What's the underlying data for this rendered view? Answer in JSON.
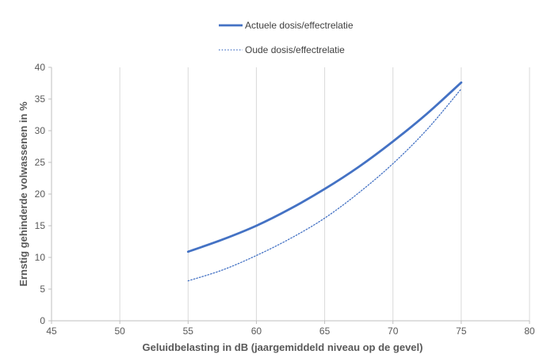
{
  "chart_data": {
    "type": "line",
    "xlabel": "Geluidbelasting in dB (jaargemiddeld niveau op de gevel)",
    "ylabel": "Ernstig gehinderde volwassenen in %",
    "xlim": [
      45,
      80
    ],
    "ylim": [
      0,
      40
    ],
    "xticks": [
      45,
      50,
      55,
      60,
      65,
      70,
      75,
      80
    ],
    "yticks": [
      0,
      5,
      10,
      15,
      20,
      25,
      30,
      35,
      40
    ],
    "grid": "vertical",
    "legend_position": "top-center",
    "series": [
      {
        "name": "Actuele dosis/effectrelatie",
        "style": "solid",
        "color": "#4472C4",
        "x": [
          55,
          57.5,
          60,
          62.5,
          65,
          67.5,
          70,
          72.5,
          75
        ],
        "y": [
          10.9,
          12.8,
          15.0,
          17.7,
          20.8,
          24.3,
          28.3,
          32.7,
          37.6
        ]
      },
      {
        "name": "Oude dosis/effectrelatie",
        "style": "dotted",
        "color": "#4472C4",
        "x": [
          55,
          57.5,
          60,
          62.5,
          65,
          67.5,
          70,
          72.5,
          75
        ],
        "y": [
          6.3,
          8.0,
          10.3,
          13.0,
          16.2,
          20.2,
          24.8,
          30.2,
          36.6
        ]
      }
    ]
  }
}
